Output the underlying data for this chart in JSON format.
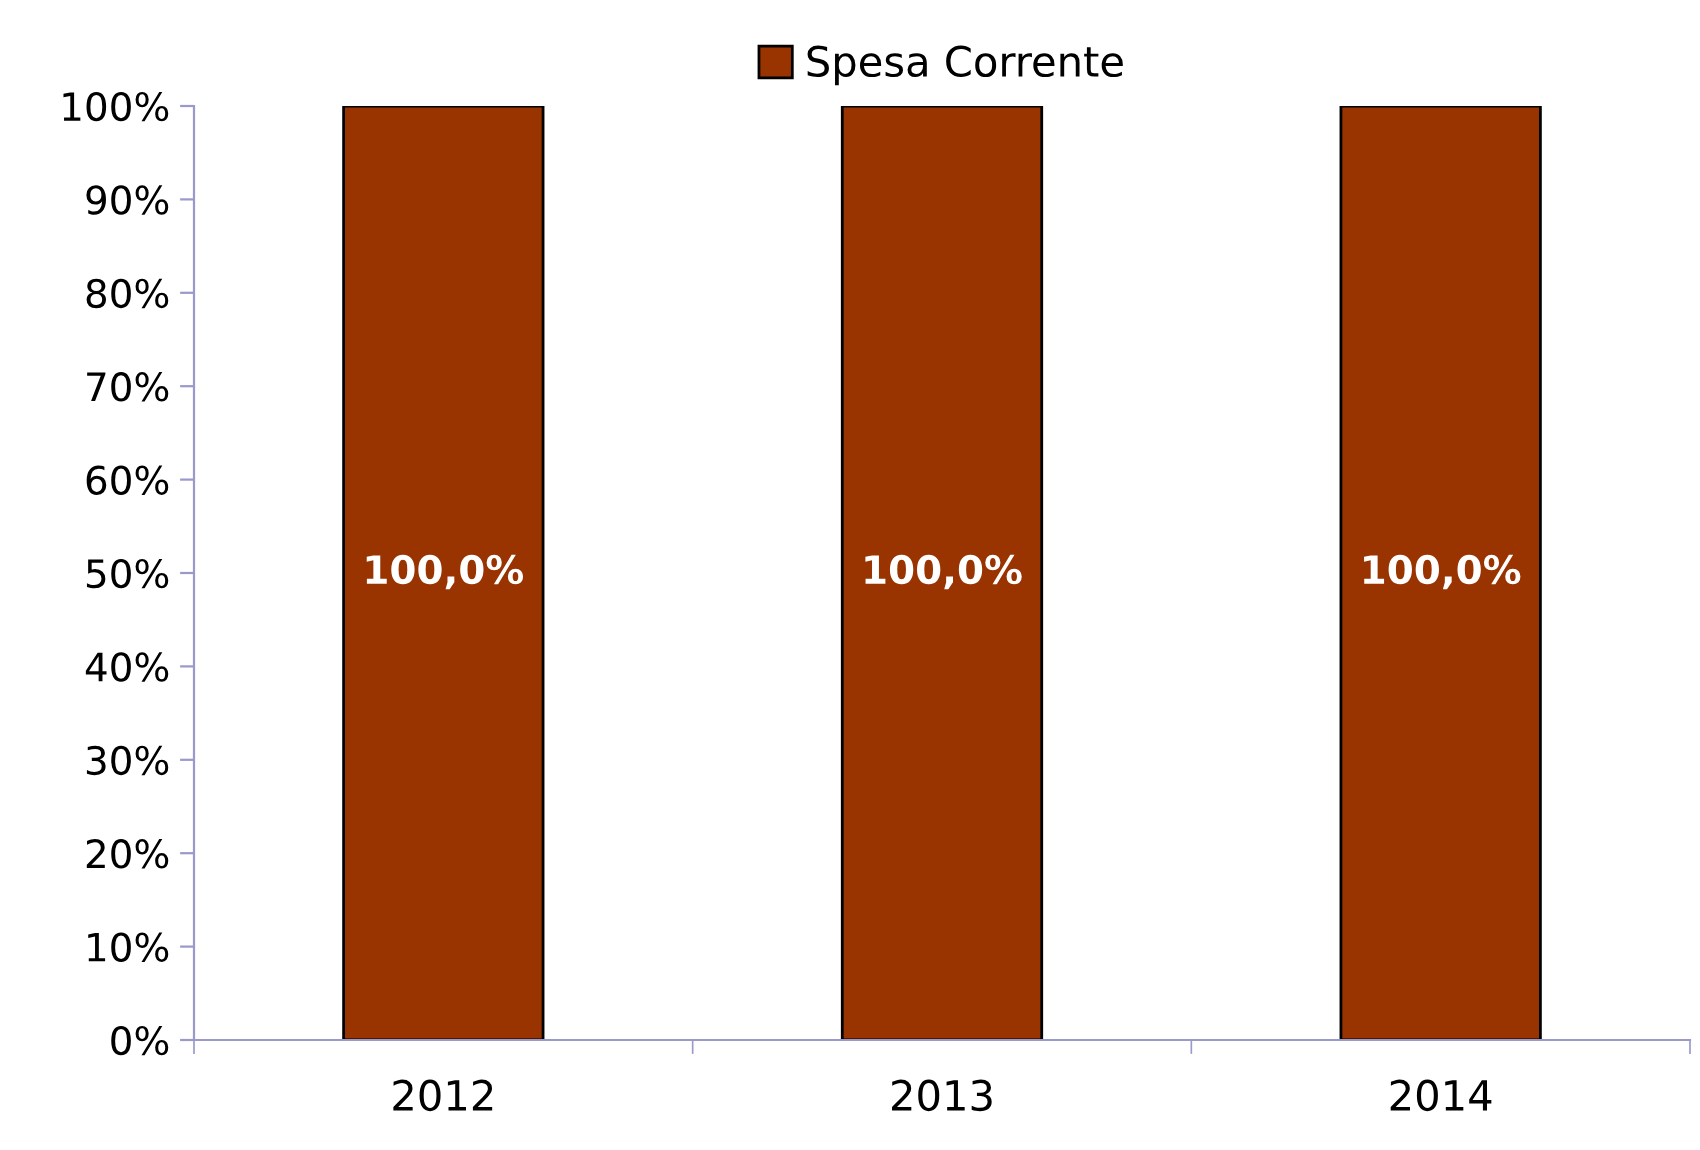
{
  "chart_data": {
    "type": "bar",
    "categories": [
      "2012",
      "2013",
      "2014"
    ],
    "series": [
      {
        "name": "Spesa Corrente",
        "color": "#993300",
        "values": [
          100,
          100,
          100
        ],
        "value_labels": [
          "100,0%",
          "100,0%",
          "100,0%"
        ]
      }
    ],
    "ylim": [
      0,
      100
    ],
    "yticks": [
      {
        "value": 0,
        "label": "0%"
      },
      {
        "value": 10,
        "label": "10%"
      },
      {
        "value": 20,
        "label": "20%"
      },
      {
        "value": 30,
        "label": "30%"
      },
      {
        "value": 40,
        "label": "40%"
      },
      {
        "value": 50,
        "label": "50%"
      },
      {
        "value": 60,
        "label": "60%"
      },
      {
        "value": 70,
        "label": "70%"
      },
      {
        "value": 80,
        "label": "80%"
      },
      {
        "value": 90,
        "label": "90%"
      },
      {
        "value": 100,
        "label": "100%"
      }
    ],
    "legend": "top",
    "grid": false
  }
}
